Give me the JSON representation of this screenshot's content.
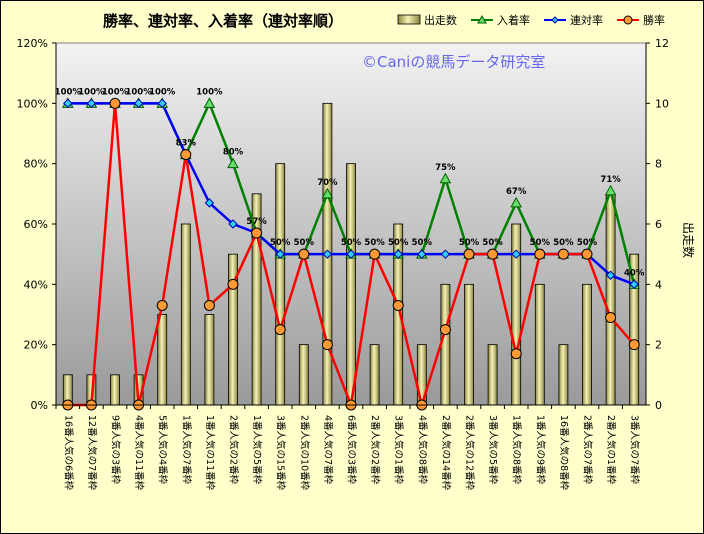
{
  "chart_data": {
    "type": "bar+line",
    "title": "勝率、連対率、入着率（連対率順）",
    "watermark": "©Caniの競馬データ研究室",
    "y2label": "出走数",
    "ylim": [
      0,
      120
    ],
    "y_ticks": [
      "0%",
      "20%",
      "40%",
      "60%",
      "80%",
      "100%",
      "120%"
    ],
    "y2lim": [
      0,
      12
    ],
    "y2_ticks": [
      "0",
      "2",
      "4",
      "6",
      "8",
      "10",
      "12"
    ],
    "grid": false,
    "legend_position": "top-right",
    "categories": [
      "16番人気の6番枠",
      "12番人気の7番枠",
      "9番人気の3番枠",
      "4番人気の11番枠",
      "5番人気の4番枠",
      "1番人気の7番枠",
      "1番人気の11番枠",
      "2番人気の2番枠",
      "1番人気の5番枠",
      "3番人気の15番枠",
      "2番人気の10番枠",
      "4番人気の7番枠",
      "6番人気の3番枠",
      "2番人気の2番枠",
      "3番人気の1番枠",
      "4番人気の8番枠",
      "2番人気の14番枠",
      "2番人気の12番枠",
      "3番人気の5番枠",
      "1番人気の8番枠",
      "1番人気の9番枠",
      "16番人気の8番枠",
      "2番人気の7番枠",
      "2番人気の1番枠",
      "3番人気の7番枠"
    ],
    "series": [
      {
        "name": "出走数",
        "kind": "bar",
        "axis": "right",
        "color": "#e8e4a0",
        "values": [
          1,
          1,
          1,
          1,
          3,
          6,
          3,
          5,
          7,
          8,
          2,
          10,
          8,
          2,
          6,
          2,
          4,
          4,
          2,
          6,
          4,
          2,
          4,
          7,
          5
        ]
      },
      {
        "name": "入着率",
        "kind": "line",
        "axis": "left",
        "color": "#008000",
        "marker": "triangle",
        "values": [
          100,
          100,
          100,
          100,
          100,
          83,
          100,
          80,
          57,
          50,
          50,
          70,
          50,
          50,
          50,
          50,
          75,
          50,
          50,
          67,
          50,
          50,
          50,
          71,
          40
        ]
      },
      {
        "name": "連対率",
        "kind": "line",
        "axis": "left",
        "color": "#0000ff",
        "marker": "diamond",
        "values": [
          100,
          100,
          100,
          100,
          100,
          83,
          67,
          60,
          57,
          50,
          50,
          50,
          50,
          50,
          50,
          50,
          50,
          50,
          50,
          50,
          50,
          50,
          50,
          43,
          40
        ]
      },
      {
        "name": "勝率",
        "kind": "line",
        "axis": "left",
        "color": "#ff0000",
        "marker": "circle",
        "values": [
          0,
          0,
          100,
          0,
          33,
          83,
          33,
          40,
          57,
          25,
          50,
          20,
          0,
          50,
          33,
          0,
          25,
          50,
          50,
          17,
          50,
          50,
          50,
          29,
          20
        ]
      }
    ],
    "data_labels": [
      "100%",
      "100%",
      "100%",
      "100%",
      "100%",
      "83%",
      "100%",
      "80%",
      "57%",
      "50%",
      "50%",
      "70%",
      "50%",
      "50%",
      "50%",
      "50%",
      "75%",
      "50%",
      "50%",
      "67%",
      "50%",
      "50%",
      "50%",
      "71%",
      "40%"
    ]
  }
}
